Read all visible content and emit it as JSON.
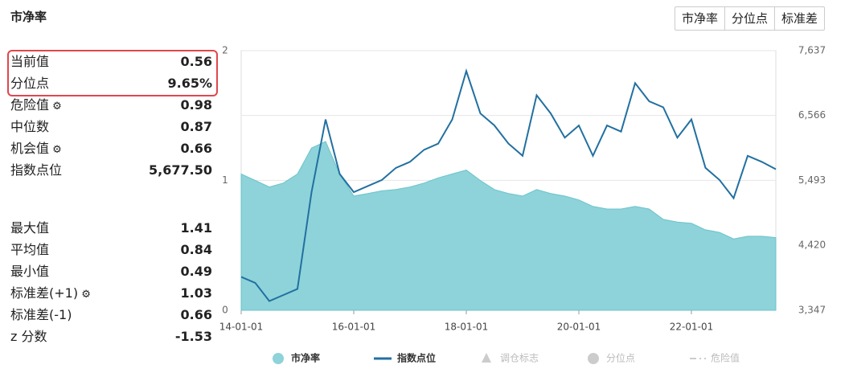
{
  "header": {
    "title": "市净率",
    "buttons": [
      "市净率",
      "分位点",
      "标准差"
    ]
  },
  "stats": [
    {
      "label": "当前值",
      "value": "0.56"
    },
    {
      "label": "分位点",
      "value": "9.65%"
    },
    {
      "label": "危险值",
      "value": "0.98"
    },
    {
      "label": "中位数",
      "value": "0.87"
    },
    {
      "label": "机会值",
      "value": "0.66"
    },
    {
      "label": "指数点位",
      "value": "5,677.50"
    },
    {
      "label": "最大值",
      "value": "1.41"
    },
    {
      "label": "平均值",
      "value": "0.84"
    },
    {
      "label": "最小值",
      "value": "0.49"
    },
    {
      "label": "标准差(+1)",
      "value": "1.03"
    },
    {
      "label": "标准差(-1)",
      "value": "0.66"
    },
    {
      "label": "z 分数",
      "value": "-1.53"
    }
  ],
  "chart_data": {
    "type": "line",
    "x": [
      "14-01-01",
      "14-04-01",
      "14-07-01",
      "14-10-01",
      "15-01-01",
      "15-04-01",
      "15-07-01",
      "15-10-01",
      "16-01-01",
      "16-04-01",
      "16-07-01",
      "16-10-01",
      "17-01-01",
      "17-04-01",
      "17-07-01",
      "17-10-01",
      "18-01-01",
      "18-04-01",
      "18-07-01",
      "18-10-01",
      "19-01-01",
      "19-04-01",
      "19-07-01",
      "19-10-01",
      "20-01-01",
      "20-04-01",
      "20-07-01",
      "20-10-01",
      "21-01-01",
      "21-04-01",
      "21-07-01",
      "21-10-01",
      "22-01-01",
      "22-04-01",
      "22-07-01",
      "22-10-01",
      "23-01-01",
      "23-04-01",
      "23-07-01"
    ],
    "xlim": [
      "14-01-01",
      "23-07-01"
    ],
    "xticks": [
      "14-01-01",
      "16-01-01",
      "18-01-01",
      "20-01-01",
      "22-01-01"
    ],
    "ylim": [
      0,
      2
    ],
    "yticks": [
      0,
      1,
      2
    ],
    "y2lim": [
      3347,
      7637
    ],
    "y2ticks": [
      {
        "value": 3347,
        "label": "3,347"
      },
      {
        "value": 4420,
        "label": "4,420"
      },
      {
        "value": 5493,
        "label": "5,493"
      },
      {
        "value": 6566,
        "label": "6,566"
      },
      {
        "value": 7637,
        "label": "7,637"
      }
    ],
    "series": [
      {
        "name": "市净率",
        "color": "#8dd3d9",
        "values": [
          1.05,
          1.0,
          0.95,
          0.98,
          1.05,
          1.25,
          1.3,
          1.05,
          0.88,
          0.9,
          0.92,
          0.93,
          0.95,
          0.98,
          1.02,
          1.05,
          1.08,
          1.0,
          0.93,
          0.9,
          0.88,
          0.93,
          0.9,
          0.88,
          0.85,
          0.8,
          0.78,
          0.78,
          0.8,
          0.78,
          0.7,
          0.68,
          0.67,
          0.62,
          0.6,
          0.55,
          0.57,
          0.57,
          0.56
        ]
      },
      {
        "name": "指数点位",
        "color": "#2270a0",
        "axis": "y2",
        "values": [
          3900,
          3800,
          3500,
          3600,
          3700,
          5300,
          6500,
          5600,
          5300,
          5400,
          5500,
          5700,
          5800,
          6000,
          6100,
          6500,
          7300,
          6600,
          6400,
          6100,
          5900,
          6900,
          6600,
          6200,
          6400,
          5900,
          6400,
          6300,
          7100,
          6800,
          6700,
          6200,
          6500,
          5700,
          5500,
          5200,
          5900,
          5800,
          5678
        ]
      }
    ],
    "legend_inactive": [
      "调仓标志",
      "分位点",
      "危险值"
    ]
  }
}
